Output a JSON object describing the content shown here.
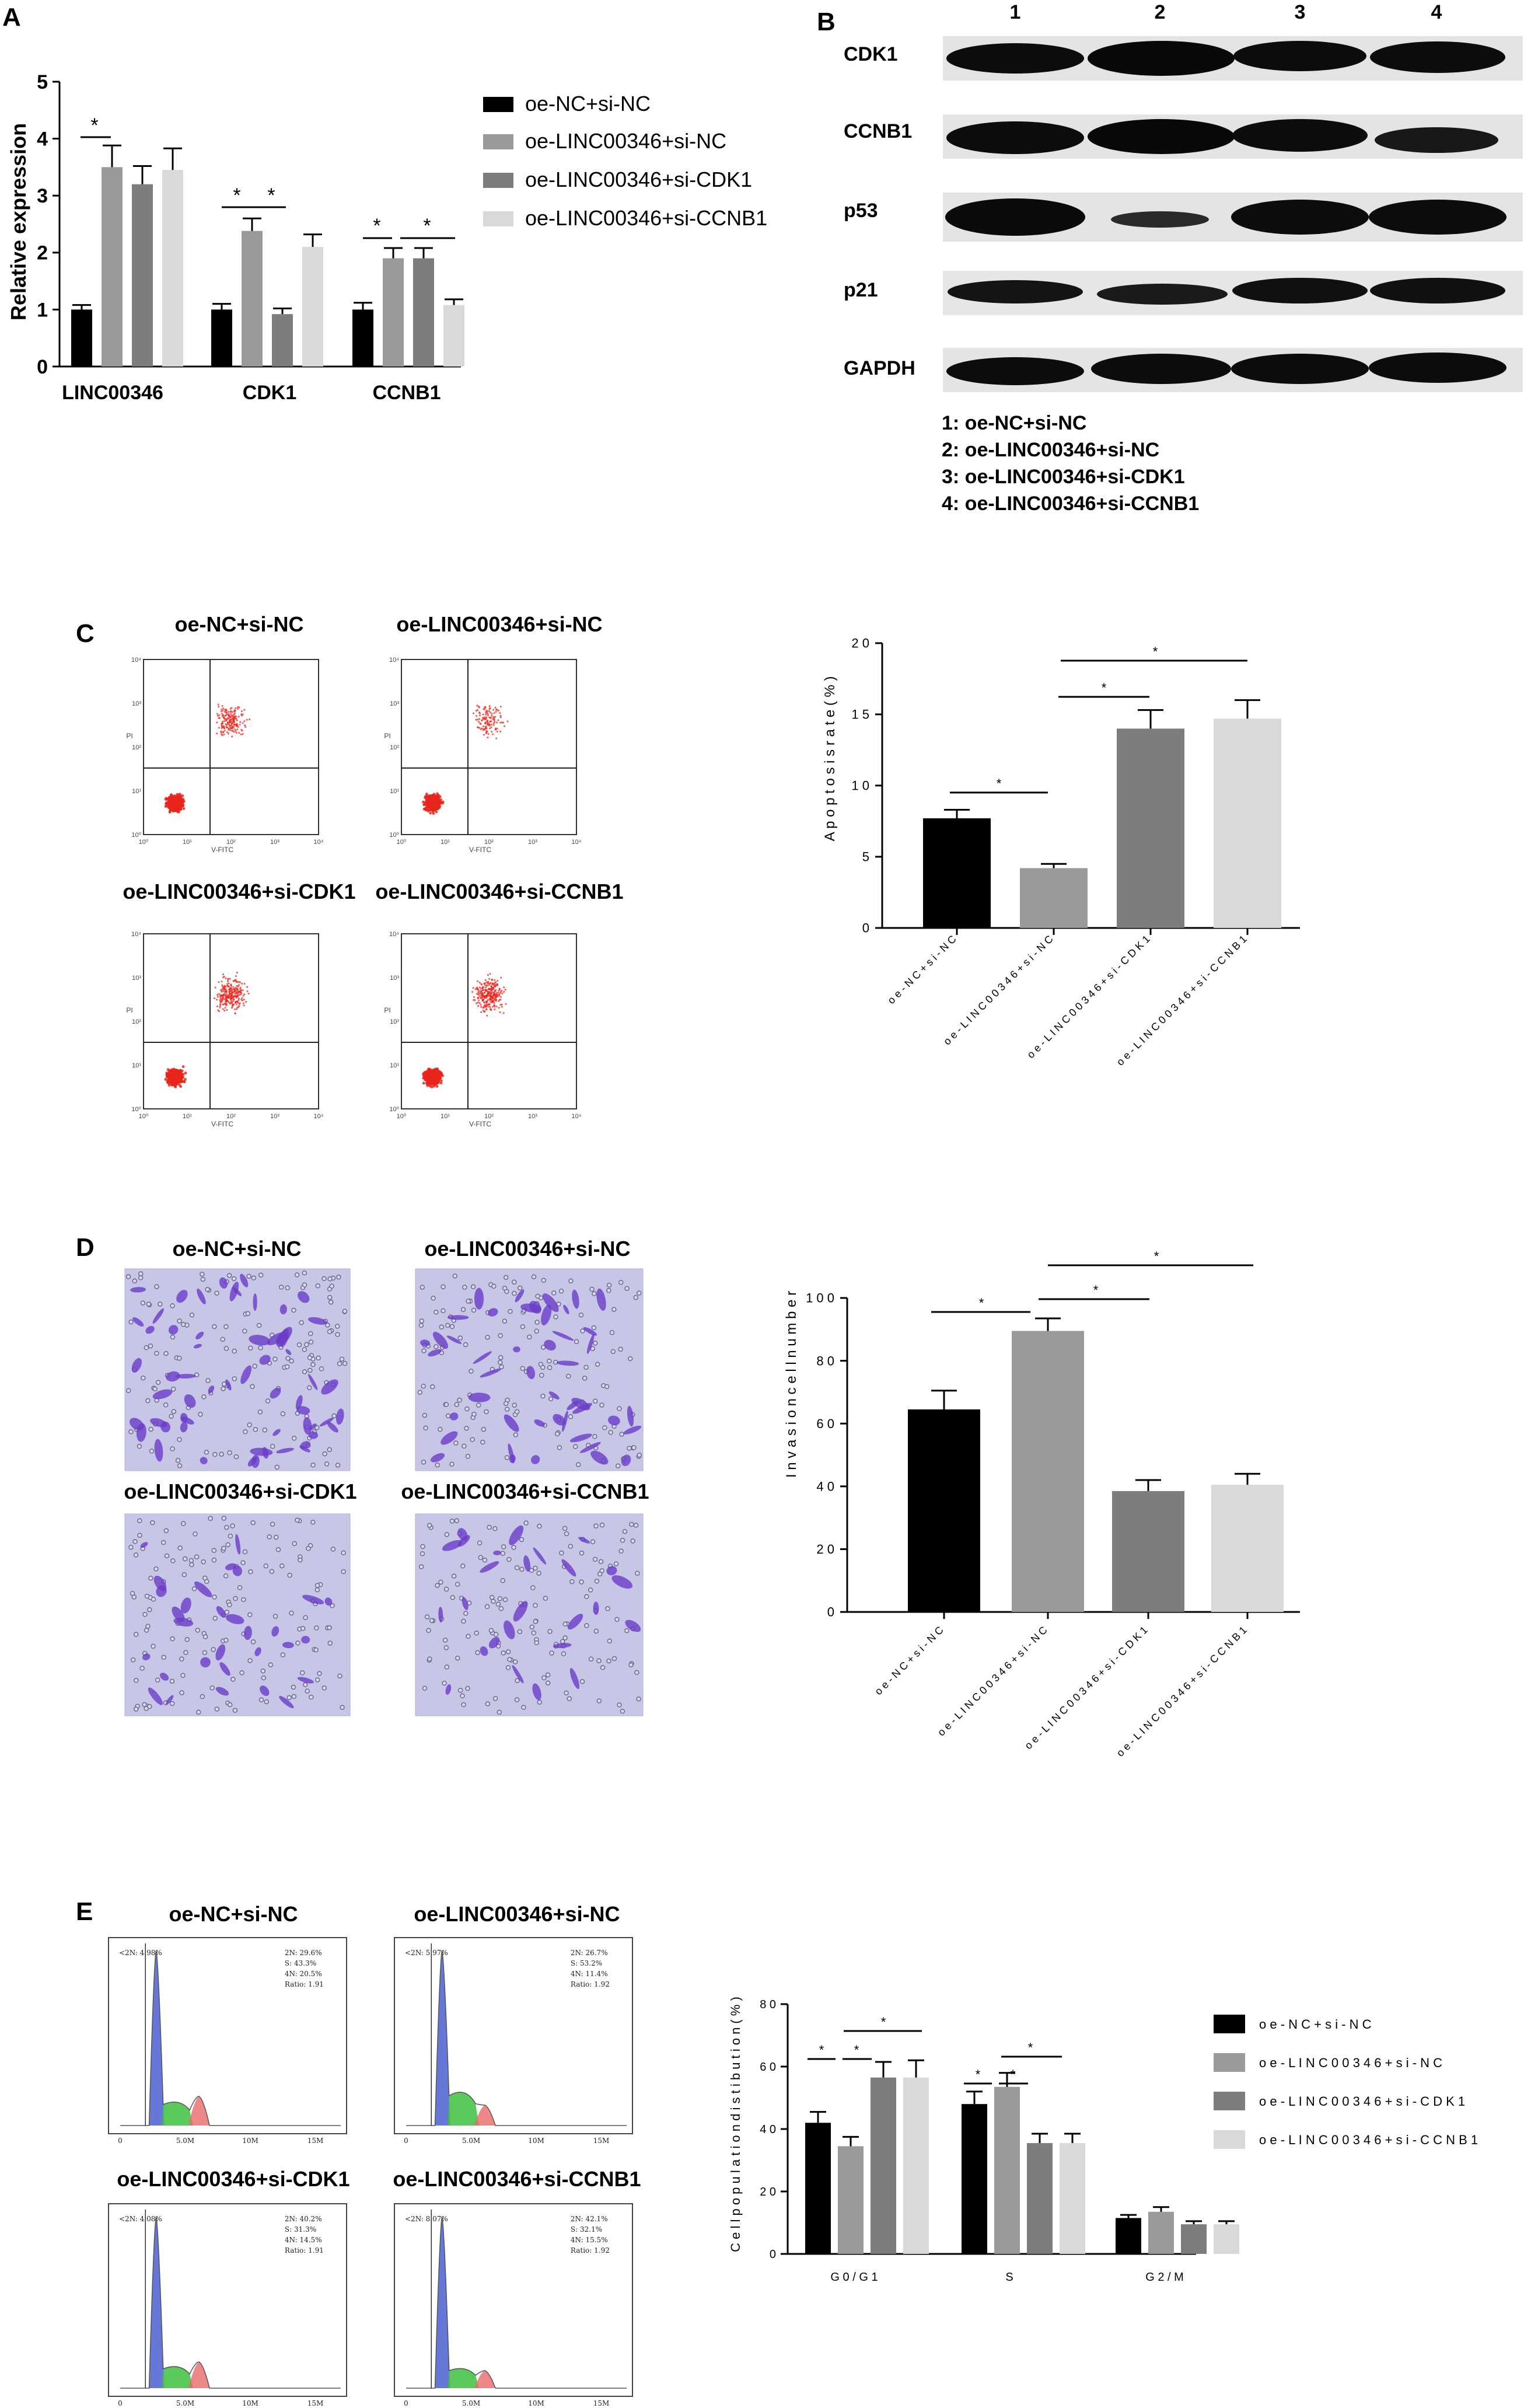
{
  "panels": {
    "A": {
      "letter": "A",
      "ylabel": "Relative expression",
      "yticks": [
        "0",
        "1",
        "2",
        "3",
        "4",
        "5"
      ],
      "legend": [
        "oe-NC+si-NC",
        "oe-LINC00346+si-NC",
        "oe-LINC00346+si-CDK1",
        "oe-LINC00346+si-CCNB1"
      ],
      "star": "*"
    },
    "B": {
      "letter": "B",
      "lanes": [
        "1",
        "2",
        "3",
        "4"
      ],
      "bands": [
        "CDK1",
        "CCNB1",
        "p53",
        "p21",
        "GAPDH"
      ],
      "key": [
        "1: oe-NC+si-NC",
        "2: oe-LINC00346+si-NC",
        "3: oe-LINC00346+si-CDK1",
        "4: oe-LINC00346+si-CCNB1"
      ]
    },
    "C": {
      "letter": "C",
      "plot_titles": [
        "oe-NC+si-NC",
        "oe-LINC00346+si-NC",
        "oe-LINC00346+si-CDK1",
        "oe-LINC00346+si-CCNB1"
      ],
      "flow_xaxis": "V-FITC",
      "flow_yaxis": "PI",
      "ylabel": "A p o p t o s i s   r a t e   ( % )",
      "yticks": [
        "0",
        "5",
        "1 0",
        "1 5",
        "2 0"
      ],
      "xcats": [
        "o e - N C + s i - N C",
        "o e - L I N C 0 0 3 4 6 + s i - N C",
        "o e - L I N C 0 0 3 4 6 + s i - C D K 1",
        "o e - L I N C 0 0 3 4 6 + s i - C C N B 1"
      ],
      "star": "*"
    },
    "D": {
      "letter": "D",
      "image_titles": [
        "oe-NC+si-NC",
        "oe-LINC00346+si-NC",
        "oe-LINC00346+si-CDK1",
        "oe-LINC00346+si-CCNB1"
      ],
      "ylabel": "I n v a s i o n   c e l l   n u m b e r",
      "yticks": [
        "0",
        "2 0",
        "4 0",
        "6 0",
        "8 0",
        "1 0 0"
      ],
      "xcats": [
        "o e - N C + s i - N C",
        "o e - L I N C 0 0 3 4 6 + s i - N C",
        "o e - L I N C 0 0 3 4 6 + s i - C D K 1",
        "o e - L I N C 0 0 3 4 6 + s i - C C N B 1"
      ],
      "star": "*"
    },
    "E": {
      "letter": "E",
      "hist_titles": [
        "oe-NC+si-NC",
        "oe-LINC00346+si-NC",
        "oe-LINC00346+si-CDK1",
        "oe-LINC00346+si-CCNB1"
      ],
      "hist_stats": [
        [
          "2N: 29.6%",
          "S: 43.3%",
          "4N: 20.5%",
          "Ratio: 1.91"
        ],
        [
          "2N: 26.7%",
          "S: 53.2%",
          "4N: 11.4%",
          "Ratio: 1.92"
        ],
        [
          "2N: 40.2%",
          "S: 31.3%",
          "4N: 14.5%",
          "Ratio: 1.91"
        ],
        [
          "2N: 42.1%",
          "S: 32.1%",
          "4N: 15.5%",
          "Ratio: 1.92"
        ]
      ],
      "hist_sub": [
        "<2N: 4.98%",
        "<2N: 5.97%",
        "<2N: 4.08%",
        "<2N: 8.07%"
      ],
      "hist_xticks": [
        "0",
        "5.0M",
        "10M",
        "15M"
      ],
      "ylabel": "C e l l   p o p u l a t i o n   d i s t i b u t i o n   ( % )",
      "yticks": [
        "0",
        "2 0",
        "4 0",
        "6 0",
        "8 0"
      ],
      "groups": [
        "G 0 / G 1",
        "S",
        "G 2 / M"
      ],
      "legend": [
        "o e - N C + s i - N C",
        "o e - L I N C 0 0 3 4 6 + s i - N C",
        "o e - L I N C 0 0 3 4 6 + s i - C D K 1",
        "o e - L I N C 0 0 3 4 6 + s i - C C N B 1"
      ],
      "star": "*"
    }
  },
  "colors": {
    "black": "#000000",
    "midgray": "#9a9a9c",
    "darkgray": "#7d7d7f",
    "lightgray": "#d9d9d9",
    "flowdot": "#e8261c",
    "stain": "#6a3cc8",
    "stainbg": "#c5c4e6"
  },
  "chart_data": [
    {
      "panel": "A",
      "type": "bar",
      "ylabel": "Relative expression",
      "ylim": [
        0,
        5
      ],
      "categories": [
        "LINC00346",
        "CDK1",
        "CCNB1"
      ],
      "series": [
        {
          "name": "oe-NC+si-NC",
          "values": [
            1.0,
            1.0,
            1.0
          ],
          "errors": [
            0.08,
            0.1,
            0.12
          ],
          "color": "#000000"
        },
        {
          "name": "oe-LINC00346+si-NC",
          "values": [
            3.5,
            2.38,
            1.9
          ],
          "errors": [
            0.38,
            0.22,
            0.18
          ],
          "color": "#9a9a9c"
        },
        {
          "name": "oe-LINC00346+si-CDK1",
          "values": [
            3.2,
            0.92,
            1.9
          ],
          "errors": [
            0.32,
            0.1,
            0.18
          ],
          "color": "#7d7d7f"
        },
        {
          "name": "oe-LINC00346+si-CCNB1",
          "values": [
            3.45,
            2.1,
            1.08
          ],
          "errors": [
            0.38,
            0.22,
            0.1
          ],
          "color": "#d9d9d9"
        }
      ],
      "legend": "right"
    },
    {
      "panel": "C",
      "type": "bar",
      "ylabel": "A p o p t o s i s   r a t e   ( % )",
      "ylim": [
        0,
        20
      ],
      "categories": [
        "o e - N C + s i - N C",
        "o e - L I N C 0 0 3 4 6 + s i - N C",
        "o e - L I N C 0 0 3 4 6 + s i - C D K 1",
        "o e - L I N C 0 0 3 4 6 + s i - C C N B 1"
      ],
      "values": [
        7.7,
        4.2,
        14.0,
        14.7
      ],
      "errors": [
        0.6,
        0.3,
        1.3,
        1.3
      ]
    },
    {
      "panel": "D",
      "type": "bar",
      "ylabel": "I n v a s i o n   c e l l   n u m b e r",
      "ylim": [
        0,
        100
      ],
      "categories": [
        "o e - N C + s i - N C",
        "o e - L I N C 0 0 3 4 6 + s i - N C",
        "o e - L I N C 0 0 3 4 6 + s i - C D K 1",
        "o e - L I N C 0 0 3 4 6 + s i - C C N B 1"
      ],
      "values": [
        64.5,
        89.5,
        38.5,
        40.5
      ],
      "errors": [
        6.0,
        4.0,
        3.5,
        3.5
      ]
    },
    {
      "panel": "E",
      "type": "bar",
      "ylabel": "C e l l   p o p u l a t i o n   d i s t i b u t i o n   ( % )",
      "ylim": [
        0,
        80
      ],
      "categories": [
        "G 0 / G 1",
        "S",
        "G 2 / M"
      ],
      "series": [
        {
          "name": "o e - N C + s i - N C",
          "values": [
            42,
            48,
            11.5
          ],
          "errors": [
            3.5,
            4.0,
            1.0
          ],
          "color": "#000000"
        },
        {
          "name": "o e - L I N C 0 0 3 4 6 + s i - N C",
          "values": [
            34.5,
            53.5,
            13.5
          ],
          "errors": [
            3.0,
            4.5,
            1.5
          ],
          "color": "#9a9a9c"
        },
        {
          "name": "o e - L I N C 0 0 3 4 6 + s i - C D K 1",
          "values": [
            56.5,
            35.5,
            9.5
          ],
          "errors": [
            5.0,
            3.0,
            1.0
          ],
          "color": "#7d7d7f"
        },
        {
          "name": "o e - L I N C 0 0 3 4 6 + s i - C C N B 1",
          "values": [
            56.5,
            35.5,
            9.5
          ],
          "errors": [
            5.5,
            3.0,
            1.0
          ],
          "color": "#d9d9d9"
        }
      ],
      "legend": "right"
    }
  ]
}
